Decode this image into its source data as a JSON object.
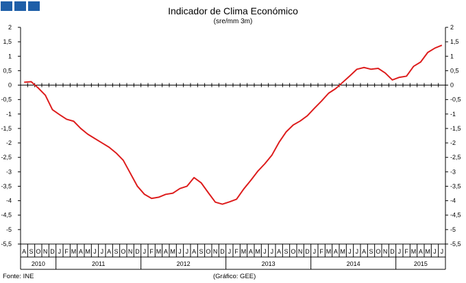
{
  "logo_colors": [
    "#1f5fa8",
    "#1f5fa8",
    "#1f5fa8"
  ],
  "title": "Indicador de Clima Económico",
  "subtitle": "(sre/mm 3m)",
  "source": "Fonte: INE",
  "credit": "(Gráfico: GEE)",
  "line_color": "#dd1c1c",
  "chart_data": {
    "type": "line",
    "title": "Indicador de Clima Económico",
    "subtitle": "(sre/mm 3m)",
    "ylim": [
      -5.5,
      2
    ],
    "yticks": [
      "2",
      "1,5",
      "1",
      "0,5",
      "0",
      "-0,5",
      "-1",
      "-1,5",
      "-2",
      "-2,5",
      "-3",
      "-3,5",
      "-4",
      "-4,5",
      "-5",
      "-5,5"
    ],
    "ytick_values": [
      2,
      1.5,
      1,
      0.5,
      0,
      -0.5,
      -1,
      -1.5,
      -2,
      -2.5,
      -3,
      -3.5,
      -4,
      -4.5,
      -5,
      -5.5
    ],
    "months": [
      "A",
      "S",
      "O",
      "N",
      "D",
      "J",
      "F",
      "M",
      "A",
      "M",
      "J",
      "J",
      "A",
      "S",
      "O",
      "N",
      "D",
      "J",
      "F",
      "M",
      "A",
      "M",
      "J",
      "J",
      "A",
      "S",
      "O",
      "N",
      "D",
      "J",
      "F",
      "M",
      "A",
      "M",
      "J",
      "J",
      "A",
      "S",
      "O",
      "N",
      "D",
      "J",
      "F",
      "M",
      "A",
      "M",
      "J",
      "J",
      "A",
      "S",
      "O",
      "N",
      "D",
      "J",
      "F",
      "M",
      "A",
      "M",
      "J",
      "J"
    ],
    "years": [
      {
        "label": "2010",
        "start": 0,
        "count": 5
      },
      {
        "label": "2011",
        "start": 5,
        "count": 12
      },
      {
        "label": "2012",
        "start": 17,
        "count": 12
      },
      {
        "label": "2013",
        "start": 29,
        "count": 12
      },
      {
        "label": "2014",
        "start": 41,
        "count": 12
      },
      {
        "label": "2015",
        "start": 53,
        "count": 7
      }
    ],
    "series": [
      {
        "values": [
          0.1,
          0.12,
          -0.1,
          -0.35,
          -0.85,
          -1.02,
          -1.18,
          -1.25,
          -1.5,
          -1.7,
          -1.85,
          -2.0,
          -2.15,
          -2.35,
          -2.6,
          -3.05,
          -3.5,
          -3.78,
          -3.92,
          -3.88,
          -3.78,
          -3.74,
          -3.58,
          -3.5,
          -3.2,
          -3.38,
          -3.72,
          -4.05,
          -4.12,
          -4.04,
          -3.95,
          -3.6,
          -3.3,
          -2.98,
          -2.72,
          -2.42,
          -1.98,
          -1.62,
          -1.38,
          -1.24,
          -1.06,
          -0.8,
          -0.55,
          -0.28,
          -0.12,
          0.1,
          0.32,
          0.55,
          0.61,
          0.55,
          0.58,
          0.42,
          0.18,
          0.27,
          0.31,
          0.65,
          0.8,
          1.13,
          1.28,
          1.38
        ]
      }
    ]
  }
}
